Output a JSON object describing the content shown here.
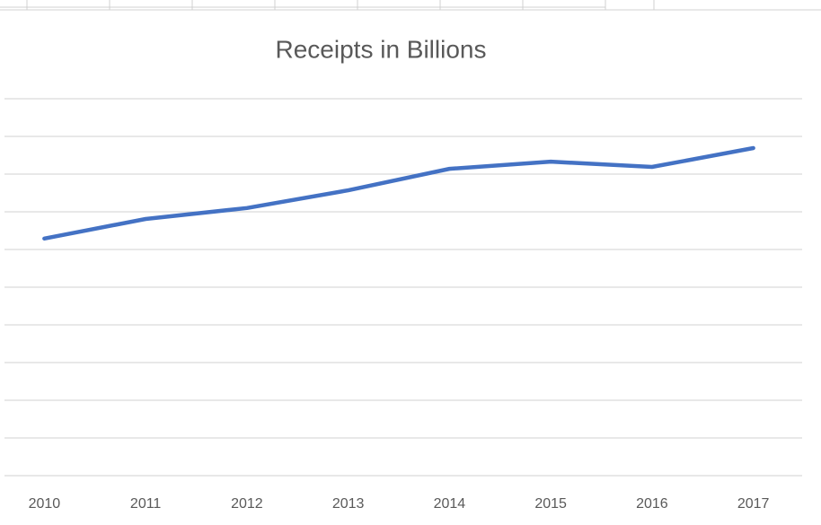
{
  "chart_data": {
    "type": "line",
    "title": "Receipts in Billions",
    "categories": [
      "2010",
      "2011",
      "2012",
      "2013",
      "2014",
      "2015",
      "2016",
      "2017"
    ],
    "series": [
      {
        "color": "#4472c4",
        "values": [
          6.29,
          6.81,
          7.1,
          7.57,
          8.14,
          8.33,
          8.19,
          8.69
        ]
      }
    ],
    "ylim": [
      0,
      10
    ],
    "yticks": [
      0,
      1,
      2,
      3,
      4,
      5,
      6,
      7,
      8,
      9,
      10
    ],
    "grid": true
  }
}
